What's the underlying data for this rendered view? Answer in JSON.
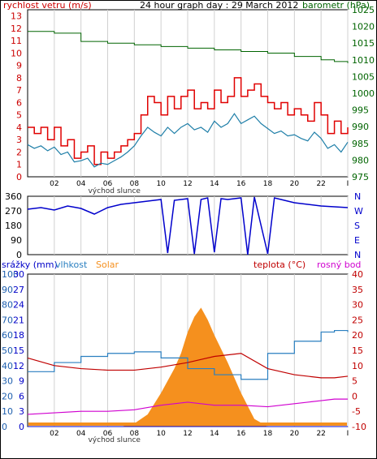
{
  "title": "24 hour graph day : 29 March 2012",
  "colors": {
    "wind_gust": "#e00000",
    "wind_avg": "#1f7fa8",
    "pressure": "#006400",
    "direction": "#0000cc",
    "rain": "#0000c8",
    "humidity": "#2a7fc0",
    "solar": "#f5901e",
    "temperature": "#c00000",
    "dewpoint": "#d000d0",
    "grid": "#d0d0d0",
    "axis_blue": "#1e5fae",
    "axis_red": "#cc0000",
    "sunrise_label": "#333333"
  },
  "chart_data": [
    {
      "type": "line",
      "panel": "wind",
      "title": "24 hour graph day : 29 March 2012",
      "left_axis_label": "rychlost vetru (m/s)",
      "right_axis_label": "barometr (hPa)",
      "y_left_ticks": [
        "13",
        "12",
        "11",
        "10",
        "9",
        "8",
        "7",
        "6",
        "5",
        "4",
        "3",
        "2",
        "1",
        "0"
      ],
      "y_right_ticks": [
        "1025",
        "1020",
        "1015",
        "1010",
        "1005",
        "1000",
        "995",
        "990",
        "985",
        "980",
        "975"
      ],
      "x_ticks": [
        "02",
        "04",
        "06",
        "08",
        "10",
        "12",
        "14",
        "16",
        "18",
        "20",
        "22",
        "I"
      ],
      "sunrise_label": "východ slunce",
      "ylim_left": [
        0,
        13.5
      ],
      "ylim_right": [
        975,
        1025
      ],
      "series": [
        {
          "name": "wind_gust",
          "x": [
            0,
            0.5,
            1,
            1.5,
            2,
            2.5,
            3,
            3.5,
            4,
            4.5,
            5,
            5.5,
            6,
            6.5,
            7,
            7.5,
            8,
            8.5,
            9,
            9.5,
            10,
            10.5,
            11,
            11.5,
            12,
            12.5,
            13,
            13.5,
            14,
            14.5,
            15,
            15.5,
            16,
            16.5,
            17,
            17.5,
            18,
            18.5,
            19,
            19.5,
            20,
            20.5,
            21,
            21.5,
            22,
            22.5,
            23,
            23.5,
            24
          ],
          "values": [
            4,
            3.5,
            4,
            3,
            4,
            2.5,
            3,
            1.5,
            2,
            2.5,
            1,
            2,
            1.5,
            2,
            2.5,
            3,
            3.5,
            5,
            6.5,
            6,
            5,
            6.5,
            5.5,
            6.5,
            7,
            5.5,
            6,
            5.5,
            7,
            6,
            6.5,
            8,
            6.5,
            7,
            7.5,
            6.5,
            6,
            5.5,
            6,
            5,
            5.5,
            5,
            4.5,
            6,
            5,
            3.5,
            4.5,
            3.5,
            4
          ]
        },
        {
          "name": "wind_avg",
          "x": [
            0,
            0.5,
            1,
            1.5,
            2,
            2.5,
            3,
            3.5,
            4,
            4.5,
            5,
            5.5,
            6,
            6.5,
            7,
            7.5,
            8,
            8.5,
            9,
            9.5,
            10,
            10.5,
            11,
            11.5,
            12,
            12.5,
            13,
            13.5,
            14,
            14.5,
            15,
            15.5,
            16,
            16.5,
            17,
            17.5,
            18,
            18.5,
            19,
            19.5,
            20,
            20.5,
            21,
            21.5,
            22,
            22.5,
            23,
            23.5,
            24
          ],
          "values": [
            2.6,
            2.3,
            2.5,
            2.1,
            2.4,
            1.8,
            2,
            1.2,
            1.3,
            1.5,
            0.8,
            1.1,
            1,
            1.3,
            1.6,
            2,
            2.5,
            3.3,
            4,
            3.6,
            3.3,
            4,
            3.5,
            4,
            4.3,
            3.8,
            4,
            3.6,
            4.5,
            4,
            4.3,
            5.1,
            4.3,
            4.6,
            4.9,
            4.3,
            3.9,
            3.5,
            3.7,
            3.3,
            3.4,
            3.1,
            2.9,
            3.6,
            3.1,
            2.3,
            2.6,
            2,
            2.8
          ]
        },
        {
          "name": "barometr",
          "axis": "right",
          "x": [
            0,
            2,
            4,
            6,
            8,
            10,
            12,
            14,
            16,
            18,
            20,
            22,
            23,
            24
          ],
          "values": [
            1018.5,
            1018,
            1015.5,
            1015,
            1014.5,
            1014,
            1013.5,
            1013,
            1012.5,
            1012,
            1011,
            1010,
            1009.5,
            1009
          ]
        }
      ]
    },
    {
      "type": "line",
      "panel": "direction",
      "y_left_ticks": [
        "360",
        "270",
        "180",
        "90",
        "0"
      ],
      "y_right_ticks": [
        "N",
        "W",
        "S",
        "E",
        "N"
      ],
      "ylim": [
        0,
        360
      ],
      "series": [
        {
          "name": "wind_direction",
          "x": [
            0,
            1,
            2,
            3,
            4,
            5,
            6,
            7,
            8,
            9,
            10,
            10.5,
            11,
            12,
            12.5,
            13,
            13.5,
            14,
            14.5,
            15,
            16,
            16.5,
            17,
            18,
            18.5,
            19,
            20,
            21,
            22,
            23,
            24
          ],
          "values": [
            280,
            290,
            275,
            300,
            285,
            250,
            290,
            310,
            320,
            330,
            340,
            10,
            335,
            345,
            5,
            340,
            350,
            15,
            345,
            340,
            350,
            0,
            355,
            5,
            350,
            340,
            320,
            310,
            300,
            295,
            290
          ]
        }
      ]
    },
    {
      "type": "line",
      "panel": "weather",
      "labels": {
        "rain": "srážky (mm)",
        "humidity": "vlhkost",
        "solar": "Solar",
        "temperature": "teplota (°C)",
        "dewpoint": "rosný bod"
      },
      "y_left_outer_ticks": [
        "100",
        "90",
        "80",
        "70",
        "60",
        "50",
        "40",
        "30",
        "20",
        "10",
        "0"
      ],
      "y_left_inner_ticks": [
        "30",
        "27",
        "24",
        "21",
        "18",
        "15",
        "12",
        "9",
        "6",
        "3",
        "0"
      ],
      "y_right_ticks": [
        "40",
        "35",
        "30",
        "25",
        "20",
        "15",
        "10",
        "5",
        "0",
        "-5",
        "-10"
      ],
      "x_ticks": [
        "02",
        "04",
        "06",
        "08",
        "10",
        "12",
        "14",
        "16",
        "18",
        "20",
        "22",
        "I"
      ],
      "sunrise_label": "východ slunce",
      "ylim_temp": [
        -10,
        40
      ],
      "ylim_humidity": [
        0,
        100
      ],
      "series": [
        {
          "name": "temperature",
          "x": [
            0,
            2,
            4,
            6,
            8,
            10,
            12,
            14,
            16,
            18,
            20,
            22,
            23,
            24
          ],
          "values": [
            12.5,
            10,
            9,
            8.5,
            8.5,
            9.5,
            11,
            13,
            14,
            9,
            7,
            6,
            6,
            6.5
          ]
        },
        {
          "name": "humidity",
          "x": [
            0,
            2,
            4,
            6,
            8,
            10,
            12,
            14,
            16,
            18,
            20,
            22,
            23,
            24
          ],
          "values": [
            36,
            42,
            46,
            48,
            49,
            45,
            38,
            34,
            31,
            48,
            56,
            62,
            63,
            62
          ]
        },
        {
          "name": "dewpoint",
          "x": [
            0,
            2,
            4,
            6,
            8,
            10,
            12,
            14,
            16,
            18,
            20,
            22,
            23,
            24
          ],
          "values": [
            -6,
            -5.5,
            -5,
            -5,
            -4.5,
            -3,
            -2,
            -3,
            -3,
            -3.5,
            -2.5,
            -1.5,
            -1,
            -1
          ]
        },
        {
          "name": "solar",
          "x": [
            0,
            7,
            8,
            9,
            10,
            11,
            11.5,
            12,
            12.5,
            13,
            13.5,
            14,
            15,
            16,
            17,
            18,
            24
          ],
          "values": [
            0,
            0,
            2,
            8,
            22,
            38,
            48,
            62,
            72,
            78,
            70,
            60,
            42,
            22,
            5,
            0,
            0
          ]
        },
        {
          "name": "rain",
          "x": [
            0,
            24
          ],
          "values": [
            0,
            0
          ]
        }
      ]
    }
  ]
}
